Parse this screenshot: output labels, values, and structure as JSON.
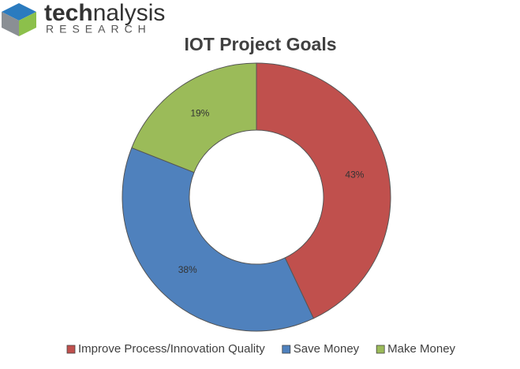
{
  "logo": {
    "parts": [
      "tech",
      "nalysis"
    ],
    "subtitle": "RESEARCH"
  },
  "chart_data": {
    "type": "donut",
    "title": "IOT Project Goals",
    "categories": [
      "Improve Process/Innovation Quality",
      "Save Money",
      "Make Money"
    ],
    "values": [
      43,
      38,
      19
    ],
    "value_labels": [
      "43%",
      "38%",
      "19%"
    ],
    "colors": [
      "#c0504d",
      "#4f81bd",
      "#9bbb59"
    ],
    "legend": "bottom"
  }
}
